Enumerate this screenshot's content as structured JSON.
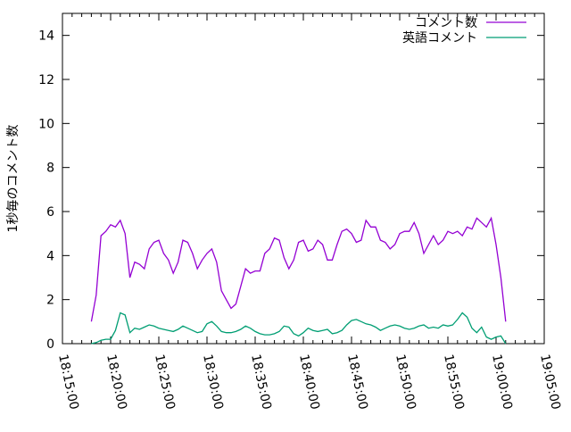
{
  "chart_data": {
    "type": "line",
    "title": "",
    "xlabel": "",
    "ylabel": "1秒毎のコメント数",
    "xlim": [
      "18:15:00",
      "19:05:00"
    ],
    "ylim": [
      0,
      15
    ],
    "x_ticks": [
      "18:15:00",
      "18:20:00",
      "18:25:00",
      "18:30:00",
      "18:35:00",
      "18:40:00",
      "18:45:00",
      "18:50:00",
      "18:55:00",
      "19:00:00",
      "19:05:00"
    ],
    "y_ticks": [
      "0",
      "2",
      "4",
      "6",
      "8",
      "10",
      "12",
      "14"
    ],
    "grid": false,
    "legend_position": "top-right",
    "x": [
      "18:18:00",
      "18:18:30",
      "18:19:00",
      "18:19:30",
      "18:20:00",
      "18:20:30",
      "18:21:00",
      "18:21:30",
      "18:22:00",
      "18:22:30",
      "18:23:00",
      "18:23:30",
      "18:24:00",
      "18:24:30",
      "18:25:00",
      "18:25:30",
      "18:26:00",
      "18:26:30",
      "18:27:00",
      "18:27:30",
      "18:28:00",
      "18:28:30",
      "18:29:00",
      "18:29:30",
      "18:30:00",
      "18:30:30",
      "18:31:00",
      "18:31:30",
      "18:32:00",
      "18:32:30",
      "18:33:00",
      "18:33:30",
      "18:34:00",
      "18:34:30",
      "18:35:00",
      "18:35:30",
      "18:36:00",
      "18:36:30",
      "18:37:00",
      "18:37:30",
      "18:38:00",
      "18:38:30",
      "18:39:00",
      "18:39:30",
      "18:40:00",
      "18:40:30",
      "18:41:00",
      "18:41:30",
      "18:42:00",
      "18:42:30",
      "18:43:00",
      "18:43:30",
      "18:44:00",
      "18:44:30",
      "18:45:00",
      "18:45:30",
      "18:46:00",
      "18:46:30",
      "18:47:00",
      "18:47:30",
      "18:48:00",
      "18:48:30",
      "18:49:00",
      "18:49:30",
      "18:50:00",
      "18:50:30",
      "18:51:00",
      "18:51:30",
      "18:52:00",
      "18:52:30",
      "18:53:00",
      "18:53:30",
      "18:54:00",
      "18:54:30",
      "18:55:00",
      "18:55:30",
      "18:56:00",
      "18:56:30",
      "18:57:00",
      "18:57:30",
      "18:58:00",
      "18:58:30",
      "18:59:00",
      "18:59:30",
      "19:00:00",
      "19:00:30",
      "19:01:00"
    ],
    "series": [
      {
        "name": "コメント数",
        "color": "#9400d3",
        "values": [
          1.0,
          2.2,
          4.9,
          5.1,
          5.4,
          5.3,
          5.6,
          5.0,
          3.0,
          3.7,
          3.6,
          3.4,
          4.3,
          4.6,
          4.7,
          4.1,
          3.8,
          3.2,
          3.7,
          4.7,
          4.6,
          4.1,
          3.4,
          3.8,
          4.1,
          4.3,
          3.7,
          2.4,
          2.0,
          1.6,
          1.8,
          2.6,
          3.4,
          3.2,
          3.3,
          3.3,
          4.1,
          4.3,
          4.8,
          4.7,
          3.9,
          3.4,
          3.8,
          4.6,
          4.7,
          4.2,
          4.3,
          4.7,
          4.5,
          3.8,
          3.8,
          4.5,
          5.1,
          5.2,
          5.0,
          4.6,
          4.7,
          5.6,
          5.3,
          5.3,
          4.7,
          4.6,
          4.3,
          4.5,
          5.0,
          5.1,
          5.1,
          5.5,
          5.0,
          4.1,
          4.5,
          4.9,
          4.5,
          4.7,
          5.1,
          5.0,
          5.1,
          4.9,
          5.3,
          5.2,
          5.7,
          5.5,
          5.3,
          5.7,
          4.5,
          3.0,
          1.0
        ]
      },
      {
        "name": "英語コメント",
        "color": "#009e73",
        "values": [
          0,
          0.05,
          0.15,
          0.2,
          0.2,
          0.6,
          1.4,
          1.3,
          0.5,
          0.7,
          0.65,
          0.75,
          0.85,
          0.8,
          0.7,
          0.65,
          0.6,
          0.55,
          0.65,
          0.8,
          0.7,
          0.6,
          0.5,
          0.55,
          0.9,
          1.0,
          0.8,
          0.55,
          0.5,
          0.5,
          0.55,
          0.65,
          0.8,
          0.7,
          0.55,
          0.45,
          0.4,
          0.4,
          0.45,
          0.55,
          0.8,
          0.75,
          0.45,
          0.35,
          0.5,
          0.7,
          0.6,
          0.55,
          0.6,
          0.65,
          0.45,
          0.5,
          0.6,
          0.85,
          1.05,
          1.1,
          1.0,
          0.9,
          0.85,
          0.75,
          0.6,
          0.7,
          0.8,
          0.85,
          0.8,
          0.7,
          0.65,
          0.7,
          0.8,
          0.85,
          0.7,
          0.75,
          0.7,
          0.85,
          0.8,
          0.85,
          1.1,
          1.4,
          1.2,
          0.7,
          0.5,
          0.75,
          0.3,
          0.2,
          0.3,
          0.35,
          0
        ]
      }
    ]
  }
}
